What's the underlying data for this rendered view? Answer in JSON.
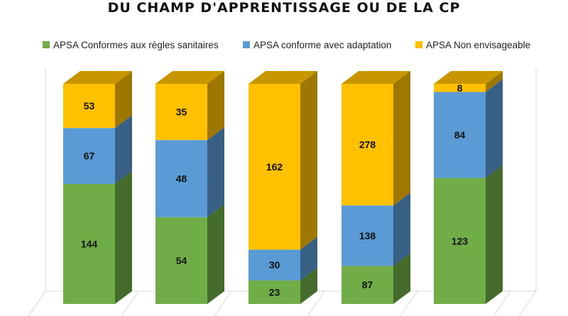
{
  "chart_data": {
    "type": "bar",
    "stacked": true,
    "three_d": true,
    "title": "DU CHAMP D'APPRENTISSAGE OU DE LA CP",
    "categories": [
      "",
      "",
      "",
      "",
      ""
    ],
    "series": [
      {
        "name": "APSA Conformes aux règles sanitaires",
        "color": "#70AD47",
        "values": [
          144,
          54,
          23,
          87,
          123
        ]
      },
      {
        "name": "APSA conforme avec adaptation",
        "color": "#5B9BD5",
        "values": [
          67,
          48,
          30,
          138,
          84
        ]
      },
      {
        "name": "APSA Non envisageable",
        "color": "#FFC000",
        "values": [
          53,
          35,
          162,
          278,
          8
        ]
      }
    ],
    "normalized_100_percent": true,
    "legend_position": "top",
    "grid": false,
    "xlabel": "",
    "ylabel": ""
  }
}
